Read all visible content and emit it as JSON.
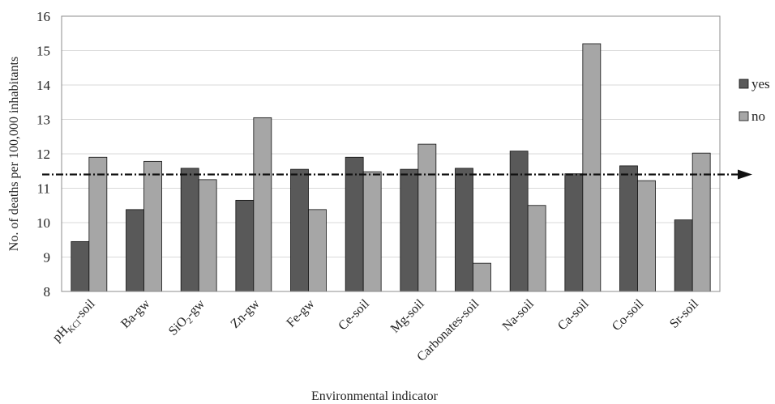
{
  "chart_data": {
    "type": "bar",
    "xlabel": "Environmental indicator",
    "ylabel": "No. of deaths per 100,000 inhabitants",
    "ylim": [
      8,
      16
    ],
    "yticks": [
      8,
      9,
      10,
      11,
      12,
      13,
      14,
      15,
      16
    ],
    "grid": true,
    "legend_position": "right",
    "reference_line": {
      "value": 11.4,
      "style": "dash-dot with arrow"
    },
    "categories": [
      {
        "base": "pH",
        "sub": "KCl",
        "suffix": "-soil"
      },
      {
        "base": "Ba-gw"
      },
      {
        "base": "SiO",
        "sub": "2",
        "suffix": "-gw"
      },
      {
        "base": "Zn-gw"
      },
      {
        "base": "Fe-gw"
      },
      {
        "base": "Ce-soil"
      },
      {
        "base": "Mg-soil"
      },
      {
        "base": "Carbonates-soil"
      },
      {
        "base": "Na-soil"
      },
      {
        "base": "Ca-soil"
      },
      {
        "base": "Co-soil"
      },
      {
        "base": "Sr-soil"
      }
    ],
    "series": [
      {
        "name": "yes",
        "color": "#595959",
        "values": [
          9.45,
          10.38,
          11.58,
          10.65,
          11.55,
          11.9,
          11.55,
          11.58,
          12.08,
          11.42,
          11.65,
          10.08
        ]
      },
      {
        "name": "no",
        "color": "#a6a6a6",
        "values": [
          11.9,
          11.78,
          11.25,
          13.05,
          10.38,
          11.48,
          12.28,
          8.82,
          10.5,
          15.2,
          11.22,
          12.02
        ]
      }
    ]
  }
}
